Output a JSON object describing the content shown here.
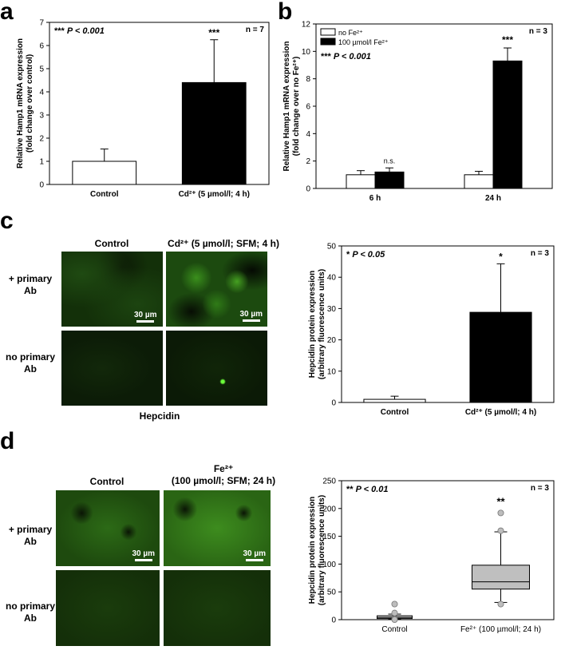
{
  "panels": {
    "a": {
      "letter": "a"
    },
    "b": {
      "letter": "b"
    },
    "c": {
      "letter": "c",
      "col_control": "Control",
      "col_cd_line1": "Cd²⁺ (5 µmol/l; SFM; 4 h)",
      "row_primary_line1": "+ primary",
      "row_primary_line2": "Ab",
      "row_noprimary_line1": "no primary",
      "row_noprimary_line2": "Ab",
      "scale_bar": "30 µm",
      "footer": "Hepcidin"
    },
    "d": {
      "letter": "d",
      "col_control": "Control",
      "col_fe_line1": "Fe²⁺",
      "col_fe_line2": "(100 µmol/l; SFM; 24 h)",
      "row_primary_line1": "+ primary",
      "row_primary_line2": "Ab",
      "row_noprimary_line1": "no primary",
      "row_noprimary_line2": "Ab",
      "scale_bar": "30 µm"
    }
  },
  "chart_data": [
    {
      "id": "a",
      "type": "bar",
      "categories": [
        "Control",
        "Cd²⁺ (5 µmol/l; 4 h)"
      ],
      "values": [
        1.0,
        4.4
      ],
      "errors": [
        0.53,
        1.85
      ],
      "bar_colors": [
        "#ffffff",
        "#000000"
      ],
      "ylabel_line1": "Relative Hamp1 mRNA expression",
      "ylabel_line2": "(fold change over control)",
      "ylim": [
        0,
        7
      ],
      "yticks": [
        0,
        1,
        2,
        3,
        4,
        5,
        6,
        7
      ],
      "stat_stars": "***",
      "stat_text": "P < 0.001",
      "bar_annotations": [
        "",
        "***"
      ],
      "n_text": "n = 7"
    },
    {
      "id": "b",
      "type": "bar",
      "categories": [
        "6 h",
        "24 h"
      ],
      "series": [
        {
          "name": "no Fe²⁺",
          "color": "#ffffff",
          "values": [
            1.0,
            1.0
          ],
          "errors": [
            0.3,
            0.25
          ]
        },
        {
          "name": "100 µmol/l Fe²⁺",
          "color": "#000000",
          "values": [
            1.2,
            9.3
          ],
          "errors": [
            0.3,
            0.95
          ]
        }
      ],
      "ylabel_line1": "Relative Hamp1 mRNA expression",
      "ylabel_line2": "(fold change over no Fe²⁺)",
      "ylim": [
        0,
        12
      ],
      "yticks": [
        0,
        2,
        4,
        6,
        8,
        10,
        12
      ],
      "legend_position": "top-left",
      "stat_stars": "***",
      "stat_text": "P < 0.001",
      "annotations": [
        {
          "category": 0,
          "text": "n.s."
        },
        {
          "category": 1,
          "text": "***"
        }
      ],
      "n_text": "n = 3"
    },
    {
      "id": "c",
      "type": "bar",
      "categories": [
        "Control",
        "Cd²⁺ (5 µmol/l; 4 h)"
      ],
      "values": [
        1.0,
        28.8
      ],
      "errors": [
        1.0,
        15.5
      ],
      "bar_colors": [
        "#ffffff",
        "#000000"
      ],
      "ylabel_line1": "Hepcidin protein expression",
      "ylabel_line2": "(arbitrary fluorescence units)",
      "ylim": [
        0,
        50
      ],
      "yticks": [
        0,
        10,
        20,
        30,
        40,
        50
      ],
      "stat_stars": "*",
      "stat_text": "P < 0.05",
      "bar_annotations": [
        "",
        "*"
      ],
      "n_text": "n = 3"
    },
    {
      "id": "d",
      "type": "box",
      "categories": [
        "Control",
        "Fe²⁺ (100 µmol/l; 24 h)"
      ],
      "boxes": [
        {
          "whisker_low": 1,
          "q1": 2,
          "median": 4,
          "q3": 7,
          "whisker_high": 10,
          "outliers": [
            12,
            28,
            1,
            0
          ],
          "color": "#d3d3d3"
        },
        {
          "whisker_low": 31,
          "q1": 55,
          "median": 68,
          "q3": 98,
          "whisker_high": 158,
          "outliers": [
            28,
            160,
            192
          ],
          "color": "#bfbfbf"
        }
      ],
      "ylabel_line1": "Hepcidin protein expression",
      "ylabel_line2": "(arbitrary fluorescence units)",
      "ylim": [
        0,
        250
      ],
      "yticks": [
        0,
        50,
        100,
        150,
        200,
        250
      ],
      "stat_stars": "**",
      "stat_text": "P < 0.01",
      "box_annotations": [
        "",
        "**"
      ],
      "n_text": "n = 3"
    }
  ]
}
